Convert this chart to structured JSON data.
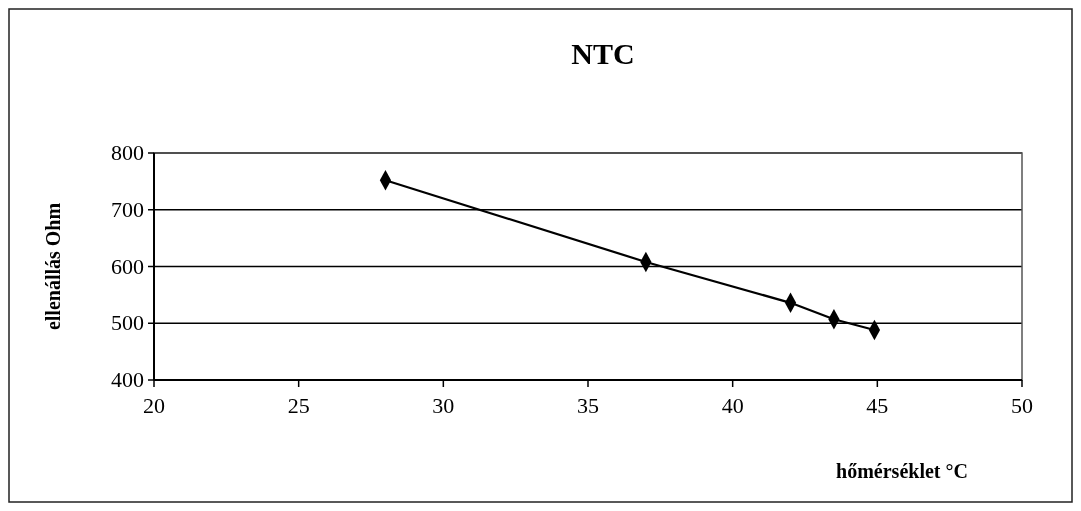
{
  "chart_data": {
    "type": "line",
    "title": "NTC",
    "xlabel": "hőmérséklet °C",
    "ylabel": "ellenállás Ohm",
    "x": [
      28,
      37,
      42,
      43.5,
      44.9
    ],
    "series": [
      {
        "color": "#000000",
        "values": [
          752,
          608,
          536,
          507,
          488
        ]
      }
    ],
    "xlim": [
      20,
      50
    ],
    "xticks": [
      20,
      25,
      30,
      35,
      40,
      45,
      50
    ],
    "ylim": [
      400,
      800
    ],
    "yticks": [
      400,
      500,
      600,
      700,
      800
    ],
    "grid": "y",
    "marker": "diamond",
    "line_style": "solid"
  }
}
